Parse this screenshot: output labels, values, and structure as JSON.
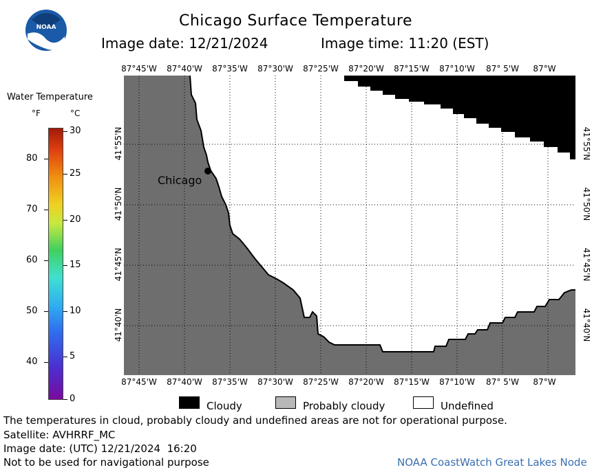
{
  "header": {
    "logo_text": "NOAA",
    "title": "Chicago Surface Temperature",
    "image_date": "Image date: 12/21/2024",
    "image_time": "Image time: 11:20 (EST)"
  },
  "colorbar": {
    "title": "Water Temperature",
    "unit_f": "°F",
    "unit_c": "°C",
    "f_ticks": [
      "80",
      "70",
      "60",
      "50",
      "40"
    ],
    "c_ticks": [
      "30",
      "25",
      "20",
      "15",
      "10",
      "5",
      "0"
    ]
  },
  "map": {
    "lon_labels": [
      "87°45'W",
      "87°40'W",
      "87°35'W",
      "87°30'W",
      "87°25'W",
      "87°20'W",
      "87°15'W",
      "87°10'W",
      "87° 5'W",
      "87°W"
    ],
    "lat_labels": [
      "41°55'N",
      "41°50'N",
      "41°45'N",
      "41°40'N"
    ],
    "city_label": "Chicago",
    "colors": {
      "land": "#6e6e6e",
      "cloudy": "#000000",
      "probably_cloudy": "#b8b8b8",
      "undefined": "#ffffff"
    }
  },
  "legend": {
    "cloudy": "Cloudy",
    "probably_cloudy": "Probably cloudy",
    "undefined": "Undefined"
  },
  "footer": {
    "disclaimer": "The temperatures in cloud, probably cloudy and undefined areas are not for operational purpose.",
    "satellite": "Satellite: AVHRRF_MC",
    "utc_date": "Image date: (UTC) 12/21/2024  16:20",
    "nav_warning": "Not to be used for navigational purpose",
    "credit": "NOAA CoastWatch Great Lakes Node"
  }
}
